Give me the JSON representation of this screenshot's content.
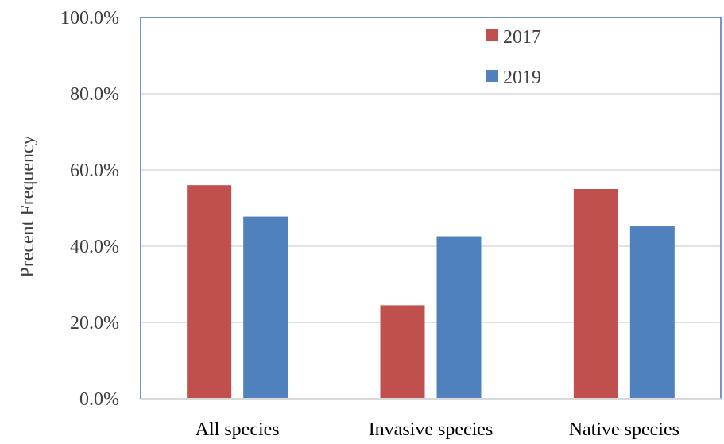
{
  "chart_data": {
    "type": "bar",
    "ylabel": "Precent Frequency",
    "ylim": [
      0,
      100
    ],
    "y_ticks": [
      "0.0%",
      "20.0%",
      "40.0%",
      "60.0%",
      "80.0%",
      "100.0%"
    ],
    "y_tick_values": [
      0,
      20,
      40,
      60,
      80,
      100
    ],
    "categories": [
      "All species",
      "Invasive species",
      "Native species"
    ],
    "series": [
      {
        "name": "2017",
        "color": "#C0504D",
        "values": [
          56.0,
          24.5,
          55.0
        ]
      },
      {
        "name": "2019",
        "color": "#4F81BD",
        "values": [
          47.8,
          42.6,
          45.2
        ]
      }
    ],
    "grid": true,
    "legend_position": "top-right",
    "frame_color": "#4472C4",
    "grid_color": "#D9D9D9"
  }
}
